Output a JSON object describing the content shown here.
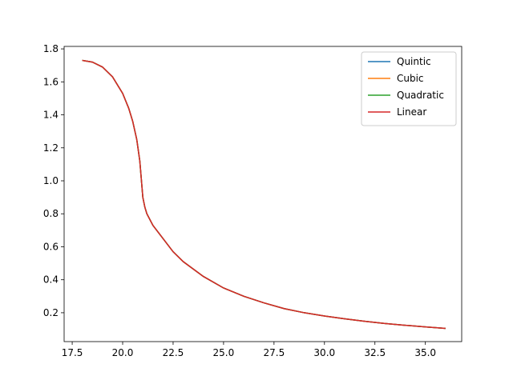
{
  "chart_data": {
    "type": "line",
    "x": [
      18,
      18.5,
      19,
      19.5,
      20,
      20.3,
      20.5,
      20.7,
      20.85,
      21,
      21.1,
      21.2,
      21.5,
      22,
      22.5,
      23,
      24,
      25,
      26,
      27,
      28,
      29,
      30,
      31,
      32,
      33,
      34,
      35,
      36
    ],
    "series": [
      {
        "name": "Quintic",
        "color": "#1f77b4",
        "values": [
          1.73,
          1.72,
          1.69,
          1.63,
          1.53,
          1.44,
          1.36,
          1.25,
          1.12,
          0.9,
          0.84,
          0.8,
          0.73,
          0.65,
          0.57,
          0.51,
          0.42,
          0.35,
          0.3,
          0.26,
          0.225,
          0.2,
          0.18,
          0.163,
          0.148,
          0.135,
          0.124,
          0.114,
          0.105
        ]
      },
      {
        "name": "Cubic",
        "color": "#ff7f0e",
        "values": [
          1.73,
          1.72,
          1.69,
          1.63,
          1.53,
          1.44,
          1.36,
          1.25,
          1.12,
          0.9,
          0.84,
          0.8,
          0.73,
          0.65,
          0.57,
          0.51,
          0.42,
          0.35,
          0.3,
          0.26,
          0.225,
          0.2,
          0.18,
          0.163,
          0.148,
          0.135,
          0.124,
          0.114,
          0.105
        ]
      },
      {
        "name": "Quadratic",
        "color": "#2ca02c",
        "values": [
          1.73,
          1.72,
          1.69,
          1.63,
          1.53,
          1.44,
          1.36,
          1.25,
          1.12,
          0.9,
          0.84,
          0.8,
          0.73,
          0.65,
          0.57,
          0.51,
          0.42,
          0.35,
          0.3,
          0.26,
          0.225,
          0.2,
          0.18,
          0.163,
          0.148,
          0.135,
          0.124,
          0.114,
          0.105
        ]
      },
      {
        "name": "Linear",
        "color": "#d62728",
        "values": [
          1.73,
          1.72,
          1.69,
          1.63,
          1.53,
          1.44,
          1.36,
          1.25,
          1.12,
          0.9,
          0.84,
          0.8,
          0.73,
          0.65,
          0.57,
          0.51,
          0.42,
          0.35,
          0.3,
          0.26,
          0.225,
          0.2,
          0.18,
          0.163,
          0.148,
          0.135,
          0.124,
          0.114,
          0.105
        ]
      }
    ],
    "xlim": [
      17.1,
      36.8
    ],
    "xticks": [
      17.5,
      {
        "value": 20,
        "label": "20.0"
      },
      22.5,
      {
        "value": 25,
        "label": "25.0"
      },
      27.5,
      {
        "value": 30,
        "label": "30.0"
      },
      32.5,
      {
        "value": 35,
        "label": "35.0"
      }
    ],
    "ylim": [
      0.025,
      1.815
    ],
    "yticks": [
      0.2,
      0.4,
      0.6,
      0.8,
      {
        "value": 1,
        "label": "1.0"
      },
      1.2,
      1.4,
      1.6,
      1.8
    ],
    "legend": "upper right"
  }
}
